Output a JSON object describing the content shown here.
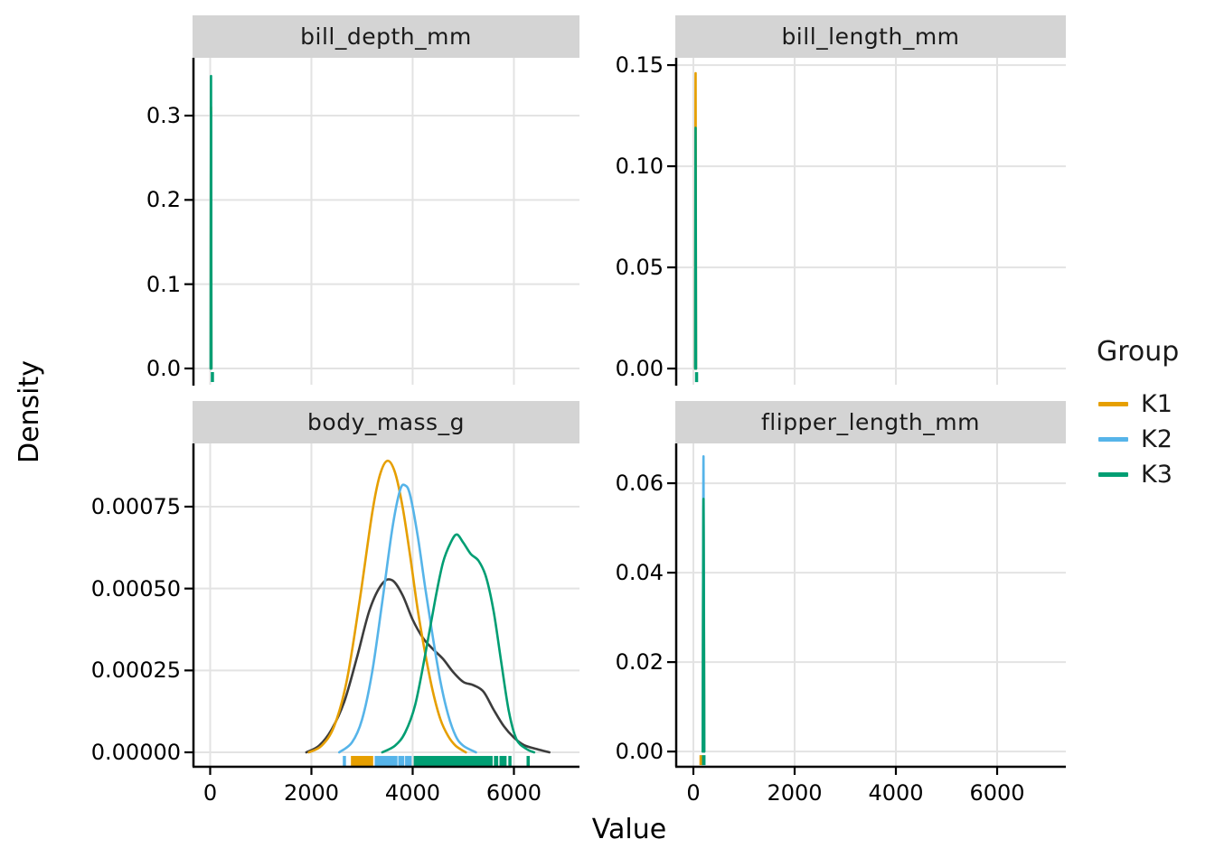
{
  "axes": {
    "x_title": "Value",
    "y_title": "Density"
  },
  "legend": {
    "title": "Group",
    "items": [
      {
        "label": "K1",
        "color": "#E69F00"
      },
      {
        "label": "K2",
        "color": "#56B4E9"
      },
      {
        "label": "K3",
        "color": "#009E73"
      }
    ]
  },
  "style": {
    "background": "#ffffff",
    "grid_color": "#e3e3e3",
    "strip_fill": "#d4d4d4",
    "strip_text_color": "#1a1a1a",
    "axis_color": "#000000",
    "overall_curve_color": "#3c3c3c",
    "k1": "#E69F00",
    "k2": "#56B4E9",
    "k3": "#009E73"
  },
  "chart_data": [
    {
      "type": "line",
      "subtype": "density",
      "title": "bill_depth_mm",
      "xlim": [
        -348,
        7295
      ],
      "ylim": [
        -0.0193,
        0.3686
      ],
      "x_ticks": [
        0,
        2000,
        4000,
        6000
      ],
      "x_tick_labels": [
        "0",
        "2000",
        "4000",
        "6000"
      ],
      "y_ticks": [
        0.0,
        0.1,
        0.2,
        0.3
      ],
      "y_tick_labels": [
        "0.0",
        "0.1",
        "0.2",
        "0.3"
      ],
      "grid": true,
      "series": [
        {
          "name": "K1",
          "color": "#E69F00",
          "points": [
            [
              10,
              0
            ],
            [
              17,
              0.31
            ],
            [
              24,
              0
            ]
          ]
        },
        {
          "name": "K2",
          "color": "#56B4E9",
          "points": [
            [
              10,
              0
            ],
            [
              17,
              0.305
            ],
            [
              24,
              0
            ]
          ]
        },
        {
          "name": "K3",
          "color": "#009E73",
          "points": [
            [
              10,
              0
            ],
            [
              17,
              0.347
            ],
            [
              24,
              0
            ]
          ]
        }
      ],
      "rug": [
        {
          "group": "K3",
          "color": "#009E73",
          "x": [
            13,
            22
          ]
        }
      ]
    },
    {
      "type": "line",
      "subtype": "density",
      "title": "bill_length_mm",
      "xlim": [
        -357,
        7357
      ],
      "ylim": [
        -0.008,
        0.1536
      ],
      "x_ticks": [
        0,
        2000,
        4000,
        6000
      ],
      "x_tick_labels": [
        "0",
        "2000",
        "4000",
        "6000"
      ],
      "y_ticks": [
        0.0,
        0.05,
        0.1,
        0.15
      ],
      "y_tick_labels": [
        "0.00",
        "0.05",
        "0.10",
        "0.15"
      ],
      "grid": true,
      "series": [
        {
          "name": "K2",
          "color": "#56B4E9",
          "points": [
            [
              36,
              0
            ],
            [
              44,
              0.099
            ],
            [
              52,
              0
            ]
          ]
        },
        {
          "name": "K1",
          "color": "#E69F00",
          "points": [
            [
              36,
              0
            ],
            [
              44,
              0.146
            ],
            [
              52,
              0
            ]
          ]
        },
        {
          "name": "K3",
          "color": "#009E73",
          "points": [
            [
              36,
              0
            ],
            [
              44,
              0.119
            ],
            [
              52,
              0
            ]
          ]
        }
      ],
      "rug": [
        {
          "group": "K3",
          "color": "#009E73",
          "x": [
            32,
            60
          ]
        }
      ]
    },
    {
      "type": "line",
      "subtype": "density",
      "title": "body_mass_g",
      "xlim": [
        -348,
        7295
      ],
      "ylim": [
        -4.13e-05,
        0.000943
      ],
      "x_ticks": [
        0,
        2000,
        4000,
        6000
      ],
      "x_tick_labels": [
        "0",
        "2000",
        "4000",
        "6000"
      ],
      "y_ticks": [
        0.0,
        0.00025,
        0.0005,
        0.00075
      ],
      "y_tick_labels": [
        "0.00000",
        "0.00025",
        "0.00050",
        "0.00075"
      ],
      "grid": true,
      "series": [
        {
          "name": "Overall",
          "color": "#3c3c3c",
          "points": [
            [
              1900,
              0
            ],
            [
              2150,
              2e-05
            ],
            [
              2400,
              7e-05
            ],
            [
              2650,
              0.000155
            ],
            [
              2900,
              0.00029
            ],
            [
              3150,
              0.000435
            ],
            [
              3400,
              0.000515
            ],
            [
              3600,
              0.000525
            ],
            [
              3800,
              0.00048
            ],
            [
              4000,
              0.000405
            ],
            [
              4200,
              0.00035
            ],
            [
              4400,
              0.000315
            ],
            [
              4600,
              0.000285
            ],
            [
              4800,
              0.000245
            ],
            [
              5000,
              0.000215
            ],
            [
              5200,
              0.000205
            ],
            [
              5400,
              0.000185
            ],
            [
              5600,
              0.00013
            ],
            [
              5800,
              8e-05
            ],
            [
              6000,
              4.5e-05
            ],
            [
              6200,
              2.2e-05
            ],
            [
              6450,
              1e-05
            ],
            [
              6700,
              0
            ]
          ]
        },
        {
          "name": "K1",
          "color": "#E69F00",
          "points": [
            [
              1950,
              0
            ],
            [
              2200,
              2e-05
            ],
            [
              2450,
              8e-05
            ],
            [
              2700,
              0.00022
            ],
            [
              2950,
              0.00046
            ],
            [
              3200,
              0.00073
            ],
            [
              3350,
              0.000845
            ],
            [
              3500,
              0.00089
            ],
            [
              3650,
              0.000855
            ],
            [
              3800,
              0.00075
            ],
            [
              3950,
              0.0006
            ],
            [
              4100,
              0.000435
            ],
            [
              4250,
              0.0003
            ],
            [
              4400,
              0.000185
            ],
            [
              4550,
              0.0001
            ],
            [
              4700,
              5e-05
            ],
            [
              4850,
              2e-05
            ],
            [
              5050,
              0
            ]
          ]
        },
        {
          "name": "K2",
          "color": "#56B4E9",
          "points": [
            [
              2550,
              0
            ],
            [
              2800,
              3e-05
            ],
            [
              3000,
              0.0001
            ],
            [
              3200,
              0.000245
            ],
            [
              3400,
              0.00046
            ],
            [
              3600,
              0.000685
            ],
            [
              3750,
              0.0008
            ],
            [
              3850,
              0.000815
            ],
            [
              3950,
              0.000785
            ],
            [
              4100,
              0.00066
            ],
            [
              4250,
              0.0005
            ],
            [
              4400,
              0.00035
            ],
            [
              4550,
              0.000215
            ],
            [
              4700,
              0.000115
            ],
            [
              4850,
              5e-05
            ],
            [
              5000,
              2e-05
            ],
            [
              5250,
              0
            ]
          ]
        },
        {
          "name": "K3",
          "color": "#009E73",
          "points": [
            [
              3400,
              0
            ],
            [
              3650,
              2e-05
            ],
            [
              3850,
              6e-05
            ],
            [
              4050,
              0.000145
            ],
            [
              4250,
              0.0003
            ],
            [
              4450,
              0.00047
            ],
            [
              4600,
              0.00058
            ],
            [
              4750,
              0.00064
            ],
            [
              4870,
              0.000665
            ],
            [
              5000,
              0.00064
            ],
            [
              5150,
              0.000605
            ],
            [
              5300,
              0.000585
            ],
            [
              5450,
              0.000535
            ],
            [
              5600,
              0.00043
            ],
            [
              5750,
              0.000275
            ],
            [
              5900,
              0.000125
            ],
            [
              6050,
              4e-05
            ],
            [
              6250,
              1e-05
            ],
            [
              6400,
              0
            ]
          ]
        }
      ],
      "rug": [
        {
          "group": "K1",
          "color": "#E69F00",
          "x": [
            2780,
            3220
          ]
        },
        {
          "group": "K2",
          "color": "#56B4E9",
          "x": [
            2620,
            2660
          ]
        },
        {
          "group": "K2",
          "color": "#56B4E9",
          "x": [
            3250,
            3700
          ]
        },
        {
          "group": "K2",
          "color": "#56B4E9",
          "x": [
            3715,
            3835
          ]
        },
        {
          "group": "K2",
          "color": "#56B4E9",
          "x": [
            3850,
            3980
          ]
        },
        {
          "group": "K3",
          "color": "#009E73",
          "x": [
            4020,
            5580
          ]
        },
        {
          "group": "K3",
          "color": "#009E73",
          "x": [
            5605,
            5690
          ]
        },
        {
          "group": "K3",
          "color": "#009E73",
          "x": [
            5715,
            5855
          ]
        },
        {
          "group": "K3",
          "color": "#009E73",
          "x": [
            5890,
            5925
          ]
        },
        {
          "group": "K3",
          "color": "#009E73",
          "x": [
            6250,
            6295
          ]
        }
      ]
    },
    {
      "type": "line",
      "subtype": "density",
      "title": "flipper_length_mm",
      "xlim": [
        -357,
        7357
      ],
      "ylim": [
        -0.0032,
        0.0689
      ],
      "x_ticks": [
        0,
        2000,
        4000,
        6000
      ],
      "x_tick_labels": [
        "0",
        "2000",
        "4000",
        "6000"
      ],
      "y_ticks": [
        0.0,
        0.02,
        0.04,
        0.06
      ],
      "y_tick_labels": [
        "0.00",
        "0.02",
        "0.04",
        "0.06"
      ],
      "grid": true,
      "series": [
        {
          "name": "K1",
          "color": "#E69F00",
          "points": [
            [
              185,
              0
            ],
            [
              200,
              0.055
            ],
            [
              215,
              0
            ]
          ]
        },
        {
          "name": "K2",
          "color": "#56B4E9",
          "points": [
            [
              185,
              0
            ],
            [
              200,
              0.066
            ],
            [
              215,
              0
            ]
          ]
        },
        {
          "name": "K3",
          "color": "#009E73",
          "points": [
            [
              185,
              0
            ],
            [
              200,
              0.0565
            ],
            [
              215,
              0
            ]
          ]
        }
      ],
      "rug": [
        {
          "group": "K1",
          "color": "#E69F00",
          "x": [
            120,
            185
          ]
        },
        {
          "group": "K3",
          "color": "#009E73",
          "x": [
            170,
            240
          ]
        }
      ]
    }
  ]
}
